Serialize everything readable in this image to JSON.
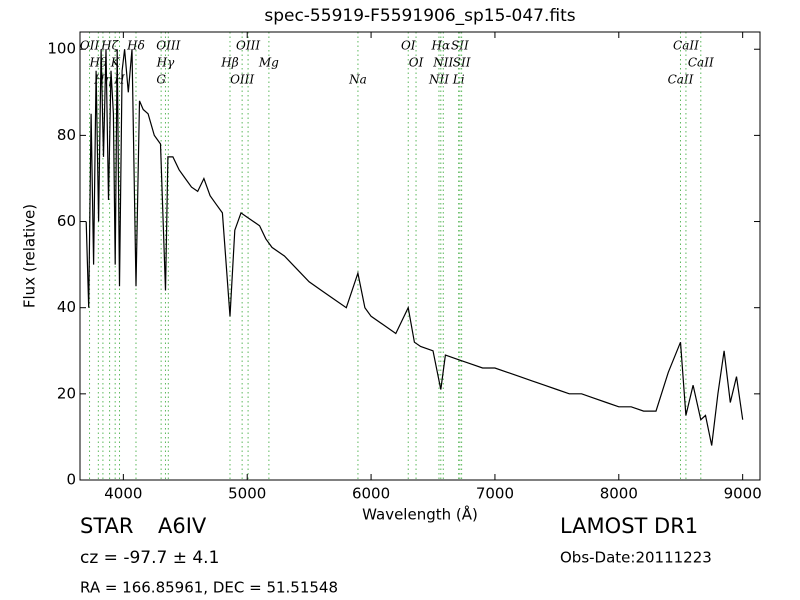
{
  "chart_data": {
    "type": "line",
    "title": "spec-55919-F5591906_sp15-047.fits",
    "x_label": "Wavelength (Å)",
    "y_label": "Flux (relative)",
    "xlim": [
      3650,
      9140
    ],
    "ylim": [
      0,
      104
    ],
    "xticks": [
      4000,
      5000,
      6000,
      7000,
      8000,
      9000
    ],
    "yticks": [
      0,
      20,
      40,
      60,
      80,
      100
    ],
    "series": [
      {
        "name": "flux",
        "color": "#000000",
        "x": [
          3700,
          3720,
          3740,
          3760,
          3780,
          3800,
          3820,
          3840,
          3860,
          3880,
          3900,
          3920,
          3934,
          3950,
          3969,
          3990,
          4010,
          4040,
          4070,
          4102,
          4130,
          4160,
          4200,
          4250,
          4300,
          4340,
          4360,
          4400,
          4450,
          4500,
          4550,
          4600,
          4650,
          4700,
          4750,
          4800,
          4861,
          4900,
          4950,
          5000,
          5050,
          5100,
          5150,
          5200,
          5300,
          5400,
          5500,
          5600,
          5700,
          5800,
          5894,
          5950,
          6000,
          6100,
          6200,
          6300,
          6350,
          6400,
          6500,
          6563,
          6600,
          6700,
          6800,
          6900,
          7000,
          7100,
          7200,
          7300,
          7400,
          7500,
          7600,
          7700,
          7800,
          7900,
          8000,
          8100,
          8200,
          8300,
          8400,
          8498,
          8542,
          8600,
          8662,
          8700,
          8750,
          8800,
          8850,
          8900,
          8950,
          9000
        ],
        "values": [
          60,
          40,
          85,
          50,
          95,
          60,
          100,
          75,
          100,
          65,
          95,
          85,
          50,
          100,
          45,
          95,
          100,
          90,
          100,
          45,
          88,
          86,
          85,
          80,
          78,
          44,
          75,
          75,
          72,
          70,
          68,
          67,
          70,
          66,
          64,
          62,
          38,
          58,
          62,
          61,
          60,
          59,
          56,
          54,
          52,
          49,
          46,
          44,
          42,
          40,
          48,
          40,
          38,
          36,
          34,
          40,
          32,
          31,
          30,
          21,
          29,
          28,
          27,
          26,
          26,
          25,
          24,
          23,
          22,
          21,
          20,
          20,
          19,
          18,
          17,
          17,
          16,
          16,
          25,
          32,
          15,
          22,
          14,
          15,
          8,
          20,
          30,
          18,
          24,
          14
        ]
      }
    ],
    "lines_color": "#5cb85c",
    "lines": [
      {
        "label": "OII",
        "x": 3727
      },
      {
        "label": "Hθ",
        "x": 3798
      },
      {
        "label": "Hη",
        "x": 3835
      },
      {
        "label": "Hζ",
        "x": 3889
      },
      {
        "label": "K",
        "x": 3934
      },
      {
        "label": "H",
        "x": 3969
      },
      {
        "label": "Hδ",
        "x": 4102
      },
      {
        "label": "Hγ",
        "x": 4340
      },
      {
        "label": "G",
        "x": 4305
      },
      {
        "label": "OIII",
        "x": 4363
      },
      {
        "label": "Hβ",
        "x": 4861
      },
      {
        "label": "OIII",
        "x": 4959
      },
      {
        "label": "OIII",
        "x": 5007
      },
      {
        "label": "Mg",
        "x": 5175
      },
      {
        "label": "Na",
        "x": 5894
      },
      {
        "label": "OI",
        "x": 6300
      },
      {
        "label": "OI",
        "x": 6363
      },
      {
        "label": "NII",
        "x": 6548
      },
      {
        "label": "Hα",
        "x": 6563
      },
      {
        "label": "NII",
        "x": 6583
      },
      {
        "label": "Li",
        "x": 6707
      },
      {
        "label": "SII",
        "x": 6717
      },
      {
        "label": "SII",
        "x": 6731
      },
      {
        "label": "CaII",
        "x": 8498
      },
      {
        "label": "CaII",
        "x": 8542
      },
      {
        "label": "CaII",
        "x": 8662
      }
    ]
  },
  "info": {
    "class": "STAR",
    "subclass": "A6IV",
    "cz": "cz = -97.7  ± 4.1",
    "coords": "RA = 166.85961, DEC = 51.51548",
    "survey": "LAMOST DR1",
    "obs_date": "Obs-Date:20111223"
  }
}
